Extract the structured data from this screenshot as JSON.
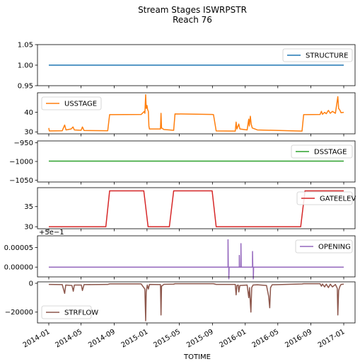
{
  "figure": {
    "title": "Stream Stages ISWRPSTR",
    "subtitle": "Reach 76",
    "xlabel": "TOTIME"
  },
  "chart_data": [
    {
      "type": "line",
      "name": "STRUCTURE",
      "color": "#1f77b4",
      "ylim": [
        0.95,
        1.05
      ],
      "yticks": [
        {
          "v": 0.95,
          "label": "0.95"
        },
        {
          "v": 1.0,
          "label": "1.00"
        },
        {
          "v": 1.05,
          "label": "1.05"
        }
      ],
      "legend_loc": "upper right",
      "series": [
        {
          "name": "STRUCTURE",
          "points": [
            [
              "2014-01-01",
              1.0
            ],
            [
              "2017-01-01",
              1.0
            ]
          ]
        }
      ]
    },
    {
      "type": "line",
      "name": "USSTAGE",
      "color": "#ff7f0e",
      "ylim": [
        29,
        50
      ],
      "yticks": [
        {
          "v": 30,
          "label": "30"
        },
        {
          "v": 40,
          "label": "40"
        }
      ],
      "legend_loc": "upper left",
      "series": [
        {
          "name": "USSTAGE",
          "points": [
            [
              "2014-01-01",
              32.0
            ],
            [
              "2014-01-03",
              30.5
            ],
            [
              "2014-02-20",
              30.6
            ],
            [
              "2014-03-01",
              33.5
            ],
            [
              "2014-03-06",
              31.0
            ],
            [
              "2014-03-25",
              31.5
            ],
            [
              "2014-04-01",
              32.5
            ],
            [
              "2014-04-06",
              31.0
            ],
            [
              "2014-05-01",
              30.8
            ],
            [
              "2014-05-06",
              32.5
            ],
            [
              "2014-05-12",
              30.7
            ],
            [
              "2014-08-08",
              30.6
            ],
            [
              "2014-08-15",
              38.8
            ],
            [
              "2014-12-10",
              38.9
            ],
            [
              "2014-12-22",
              40.5
            ],
            [
              "2014-12-24",
              39.5
            ],
            [
              "2014-12-27",
              49.0
            ],
            [
              "2014-12-29",
              42.0
            ],
            [
              "2015-01-01",
              43.5
            ],
            [
              "2015-01-03",
              41.5
            ],
            [
              "2015-01-06",
              40.5
            ],
            [
              "2015-01-08",
              33.0
            ],
            [
              "2015-01-10",
              31.5
            ],
            [
              "2015-02-20",
              31.5
            ],
            [
              "2015-02-22",
              39.5
            ],
            [
              "2015-02-24",
              32.0
            ],
            [
              "2015-03-05",
              31.2
            ],
            [
              "2015-04-10",
              30.8
            ],
            [
              "2015-04-15",
              39.2
            ],
            [
              "2015-08-31",
              38.9
            ],
            [
              "2015-09-05",
              38.8
            ],
            [
              "2015-09-15",
              30.5
            ],
            [
              "2015-11-25",
              30.4
            ],
            [
              "2015-11-28",
              35.0
            ],
            [
              "2015-12-01",
              31.5
            ],
            [
              "2015-12-08",
              34.0
            ],
            [
              "2015-12-12",
              31.5
            ],
            [
              "2016-01-08",
              31.0
            ],
            [
              "2016-01-14",
              36.5
            ],
            [
              "2016-01-16",
              33.0
            ],
            [
              "2016-01-20",
              38.0
            ],
            [
              "2016-01-23",
              34.0
            ],
            [
              "2016-01-27",
              32.0
            ],
            [
              "2016-02-15",
              31.0
            ],
            [
              "2016-07-30",
              30.4
            ],
            [
              "2016-08-05",
              38.8
            ],
            [
              "2016-10-05",
              38.9
            ],
            [
              "2016-10-10",
              40.5
            ],
            [
              "2016-10-14",
              39.0
            ],
            [
              "2016-10-22",
              40.0
            ],
            [
              "2016-10-28",
              39.3
            ],
            [
              "2016-11-05",
              41.0
            ],
            [
              "2016-11-12",
              39.5
            ],
            [
              "2016-11-20",
              40.5
            ],
            [
              "2016-12-01",
              39.5
            ],
            [
              "2016-12-10",
              48.0
            ],
            [
              "2016-12-13",
              42.0
            ],
            [
              "2016-12-18",
              41.0
            ],
            [
              "2016-12-22",
              39.8
            ],
            [
              "2017-01-01",
              40.0
            ]
          ]
        }
      ]
    },
    {
      "type": "line",
      "name": "DSSTAGE",
      "color": "#2ca02c",
      "ylim": [
        -1055,
        -945
      ],
      "yticks": [
        {
          "v": -1050,
          "label": "−1050"
        },
        {
          "v": -1000,
          "label": "−1000"
        },
        {
          "v": -950,
          "label": "−950"
        }
      ],
      "legend_loc": "upper right",
      "series": [
        {
          "name": "DSSTAGE",
          "points": [
            [
              "2014-01-01",
              -999.0
            ],
            [
              "2017-01-01",
              -999.0
            ]
          ]
        }
      ]
    },
    {
      "type": "line",
      "name": "GATEELEV",
      "color": "#d62728",
      "ylim": [
        29.5,
        39.7
      ],
      "yticks": [
        {
          "v": 30,
          "label": "30"
        },
        {
          "v": 35,
          "label": "35"
        }
      ],
      "legend_loc": "upper right",
      "series": [
        {
          "name": "GATEELEV",
          "points": [
            [
              "2014-01-01",
              30.0
            ],
            [
              "2014-08-01",
              30.0
            ],
            [
              "2014-08-15",
              38.9
            ],
            [
              "2014-12-20",
              38.9
            ],
            [
              "2015-01-05",
              30.0
            ],
            [
              "2015-03-25",
              30.0
            ],
            [
              "2015-04-10",
              38.9
            ],
            [
              "2015-08-31",
              38.9
            ],
            [
              "2015-09-15",
              30.0
            ],
            [
              "2016-07-25",
              30.0
            ],
            [
              "2016-08-10",
              38.9
            ],
            [
              "2017-01-01",
              38.9
            ]
          ]
        }
      ]
    },
    {
      "type": "line",
      "name": "OPENING",
      "color": "#9467bd",
      "offset_label": "+5e−1",
      "ylim": [
        -2.5e-05,
        8e-05
      ],
      "yticks": [
        {
          "v": 0.0,
          "label": "0.00000"
        },
        {
          "v": 5e-05,
          "label": "0.00005"
        }
      ],
      "legend_loc": "upper right",
      "series": [
        {
          "name": "OPENING",
          "points": [
            [
              "2014-01-01",
              0.0
            ],
            [
              "2015-10-29",
              0.0
            ],
            [
              "2015-10-29",
              7e-05
            ],
            [
              "2015-10-30",
              0.0
            ],
            [
              "2015-11-01",
              0.0
            ],
            [
              "2015-11-01",
              -3e-05
            ],
            [
              "2015-11-02",
              0.0
            ],
            [
              "2015-12-10",
              0.0
            ],
            [
              "2015-12-10",
              3e-05
            ],
            [
              "2015-12-11",
              0.0
            ],
            [
              "2015-12-16",
              0.0
            ],
            [
              "2015-12-16",
              6e-05
            ],
            [
              "2015-12-17",
              0.0
            ],
            [
              "2016-01-28",
              0.0
            ],
            [
              "2016-01-28",
              4e-05
            ],
            [
              "2016-01-29",
              0.0
            ],
            [
              "2016-01-31",
              0.0
            ],
            [
              "2016-01-31",
              -3e-05
            ],
            [
              "2016-02-01",
              0.0
            ],
            [
              "2017-01-01",
              0.0
            ]
          ]
        }
      ]
    },
    {
      "type": "line",
      "name": "STRFLOW",
      "color": "#8c564b",
      "ylim": [
        -27500,
        1000
      ],
      "yticks": [
        {
          "v": -20000,
          "label": "−20000"
        },
        {
          "v": 0,
          "label": "0"
        }
      ],
      "legend_loc": "lower left",
      "series": [
        {
          "name": "STRFLOW",
          "points": [
            [
              "2014-01-01",
              -800
            ],
            [
              "2014-02-20",
              -900
            ],
            [
              "2014-03-01",
              -7000
            ],
            [
              "2014-03-05",
              -1200
            ],
            [
              "2014-03-28",
              -1500
            ],
            [
              "2014-04-02",
              -5500
            ],
            [
              "2014-04-06",
              -1200
            ],
            [
              "2014-05-02",
              -1200
            ],
            [
              "2014-05-06",
              -5000
            ],
            [
              "2014-05-12",
              -900
            ],
            [
              "2014-08-08",
              -800
            ],
            [
              "2014-08-15",
              -400
            ],
            [
              "2014-12-10",
              -400
            ],
            [
              "2014-12-18",
              -2500
            ],
            [
              "2014-12-24",
              -4000
            ],
            [
              "2014-12-27",
              -26000
            ],
            [
              "2014-12-29",
              -6000
            ],
            [
              "2015-01-02",
              -1200
            ],
            [
              "2015-01-06",
              -4000
            ],
            [
              "2015-01-10",
              -800
            ],
            [
              "2015-02-20",
              -900
            ],
            [
              "2015-02-22",
              -22000
            ],
            [
              "2015-02-24",
              -2000
            ],
            [
              "2015-03-05",
              -700
            ],
            [
              "2015-04-10",
              -600
            ],
            [
              "2015-04-15",
              -300
            ],
            [
              "2015-09-05",
              -300
            ],
            [
              "2015-09-15",
              -800
            ],
            [
              "2015-11-25",
              -800
            ],
            [
              "2015-11-28",
              -8000
            ],
            [
              "2015-12-01",
              -1500
            ],
            [
              "2015-12-06",
              -1200
            ],
            [
              "2015-12-08",
              -6000
            ],
            [
              "2015-12-12",
              -1500
            ],
            [
              "2016-01-08",
              -1200
            ],
            [
              "2016-01-14",
              -10000
            ],
            [
              "2016-01-17",
              -3000
            ],
            [
              "2016-01-20",
              -14000
            ],
            [
              "2016-01-22",
              -20000
            ],
            [
              "2016-01-25",
              -3000
            ],
            [
              "2016-01-30",
              -1200
            ],
            [
              "2016-02-15",
              -1000
            ],
            [
              "2016-03-20",
              -1500
            ],
            [
              "2016-03-28",
              -9000
            ],
            [
              "2016-04-01",
              -17000
            ],
            [
              "2016-04-04",
              -3000
            ],
            [
              "2016-04-10",
              -1000
            ],
            [
              "2016-07-30",
              -500
            ],
            [
              "2016-08-05",
              -300
            ],
            [
              "2016-10-05",
              -300
            ],
            [
              "2016-10-10",
              -2000
            ],
            [
              "2016-10-14",
              -500
            ],
            [
              "2016-10-22",
              -2500
            ],
            [
              "2016-10-28",
              -600
            ],
            [
              "2016-11-05",
              -3000
            ],
            [
              "2016-11-12",
              -600
            ],
            [
              "2016-11-20",
              -2500
            ],
            [
              "2016-12-01",
              -800
            ],
            [
              "2016-12-08",
              -3500
            ],
            [
              "2016-12-10",
              -22000
            ],
            [
              "2016-12-13",
              -5000
            ],
            [
              "2016-12-18",
              -2000
            ],
            [
              "2016-12-22",
              -800
            ],
            [
              "2017-01-01",
              -600
            ]
          ]
        }
      ]
    }
  ],
  "xaxis": {
    "xlim": [
      "2013-11-20",
      "2017-02-12"
    ],
    "ticks": [
      {
        "date": "2014-01-01",
        "label": "2014-01"
      },
      {
        "date": "2014-05-01",
        "label": "2014-05"
      },
      {
        "date": "2014-09-01",
        "label": "2014-09"
      },
      {
        "date": "2015-01-01",
        "label": "2015-01"
      },
      {
        "date": "2015-05-01",
        "label": "2015-05"
      },
      {
        "date": "2015-09-01",
        "label": "2015-09"
      },
      {
        "date": "2016-01-01",
        "label": "2016-01"
      },
      {
        "date": "2016-05-01",
        "label": "2016-05"
      },
      {
        "date": "2016-09-01",
        "label": "2016-09"
      },
      {
        "date": "2017-01-01",
        "label": "2017-01"
      }
    ]
  }
}
